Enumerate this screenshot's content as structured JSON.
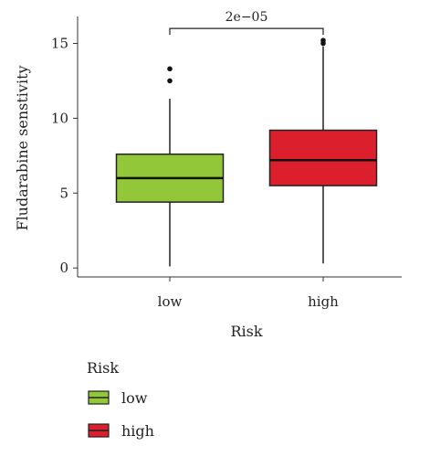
{
  "chart_data": {
    "type": "boxplot",
    "xlabel": "Risk",
    "ylabel": "Fludarabine senstivity",
    "ylim": [
      -0.6,
      16.8
    ],
    "yticks": [
      0,
      5,
      10,
      15
    ],
    "categories": [
      "low",
      "high"
    ],
    "boxes": [
      {
        "category": "low",
        "color": "#92c73a",
        "whisker_low": 0.1,
        "q1": 4.4,
        "median": 6.0,
        "q3": 7.6,
        "whisker_high": 11.3,
        "outliers": [
          12.5,
          13.3
        ]
      },
      {
        "category": "high",
        "color": "#dc1f2d",
        "whisker_low": 0.3,
        "q1": 5.5,
        "median": 7.2,
        "q3": 9.2,
        "whisker_high": 14.8,
        "outliers": [
          15.0,
          15.2
        ]
      }
    ],
    "annotation": {
      "text": "2e−05",
      "y": 16.0,
      "between": [
        "low",
        "high"
      ]
    },
    "legend": {
      "title": "Risk",
      "position": "bottom-left",
      "entries": [
        "low",
        "high"
      ]
    }
  }
}
